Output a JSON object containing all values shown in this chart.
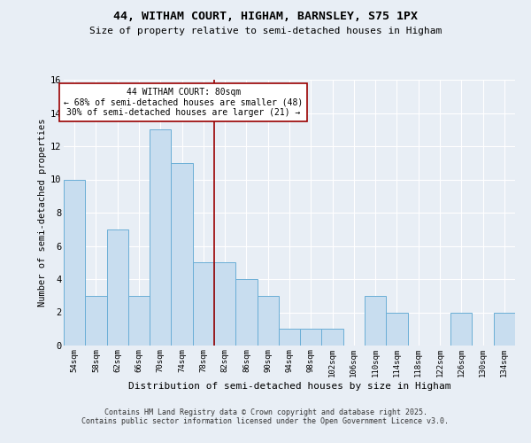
{
  "title": "44, WITHAM COURT, HIGHAM, BARNSLEY, S75 1PX",
  "subtitle": "Size of property relative to semi-detached houses in Higham",
  "xlabel": "Distribution of semi-detached houses by size in Higham",
  "ylabel": "Number of semi-detached properties",
  "bar_color": "#c8ddef",
  "bar_edge_color": "#6aaed6",
  "background_color": "#e8eef5",
  "grid_color": "#ffffff",
  "annotation_line_color": "#990000",
  "annotation_box_color": "#990000",
  "categories": [
    "54sqm",
    "58sqm",
    "62sqm",
    "66sqm",
    "70sqm",
    "74sqm",
    "78sqm",
    "82sqm",
    "86sqm",
    "90sqm",
    "94sqm",
    "98sqm",
    "102sqm",
    "106sqm",
    "110sqm",
    "114sqm",
    "118sqm",
    "122sqm",
    "126sqm",
    "130sqm",
    "134sqm"
  ],
  "values": [
    10,
    3,
    7,
    3,
    13,
    11,
    5,
    5,
    4,
    3,
    1,
    1,
    1,
    0,
    3,
    2,
    0,
    0,
    2,
    0,
    2
  ],
  "property_bin_index": 6,
  "annotation_title": "44 WITHAM COURT: 80sqm",
  "annotation_line1": "← 68% of semi-detached houses are smaller (48)",
  "annotation_line2": "30% of semi-detached houses are larger (21) →",
  "ylim": [
    0,
    16
  ],
  "yticks": [
    0,
    2,
    4,
    6,
    8,
    10,
    12,
    14,
    16
  ],
  "footer_line1": "Contains HM Land Registry data © Crown copyright and database right 2025.",
  "footer_line2": "Contains public sector information licensed under the Open Government Licence v3.0."
}
